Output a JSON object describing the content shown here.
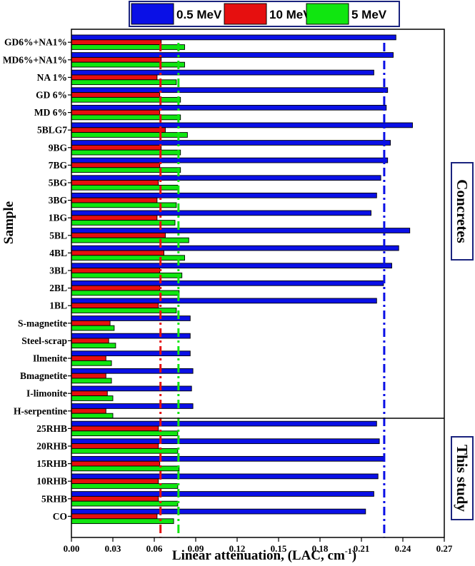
{
  "chart_data": {
    "type": "bar",
    "orientation": "horizontal",
    "title": "",
    "xlabel": "Linear attenuation, (LAC, cm",
    "xlabel_sup": "-1",
    "xlabel_end": ")",
    "ylabel": "Sample",
    "xlim": [
      0.0,
      0.27
    ],
    "xticks": [
      "0.00",
      "0.03",
      "0.06",
      "0.09",
      "0.12",
      "0.15",
      "0.18",
      "0.21",
      "0.24",
      "0.27"
    ],
    "categories": [
      "GD6%+NA1%",
      "MD6%+NA1%",
      "NA 1%",
      "GD 6%",
      "MD 6%",
      "5BLG7",
      "9BG",
      "7BG",
      "5BG",
      "3BG",
      "1BG",
      "5BL",
      "4BL",
      "3BL",
      "2BL",
      "1BL",
      "S-magnetite",
      "Steel-scrap",
      "Ilmenite",
      "Bmagnetite",
      "I-limonite",
      "H-serpentine",
      "25RHB",
      "20RHB",
      "15RHB",
      "10RHB",
      "5RHB",
      "CO"
    ],
    "series": [
      {
        "name": "0.5  MeV",
        "color": "#0a10e6",
        "values": [
          0.235,
          0.233,
          0.219,
          0.229,
          0.228,
          0.247,
          0.231,
          0.229,
          0.224,
          0.221,
          0.217,
          0.245,
          0.237,
          0.232,
          0.226,
          0.221,
          0.086,
          0.086,
          0.086,
          0.088,
          0.087,
          0.088,
          0.221,
          0.223,
          0.226,
          0.222,
          0.219,
          0.213
        ]
      },
      {
        "name": "10  MeV",
        "color": "#e60f0f",
        "values": [
          0.065,
          0.065,
          0.062,
          0.064,
          0.064,
          0.068,
          0.065,
          0.064,
          0.063,
          0.062,
          0.062,
          0.068,
          0.067,
          0.064,
          0.064,
          0.063,
          0.028,
          0.027,
          0.025,
          0.025,
          0.026,
          0.025,
          0.063,
          0.063,
          0.064,
          0.063,
          0.063,
          0.062
        ]
      },
      {
        "name": "5 MeV",
        "color": "#10e610",
        "values": [
          0.082,
          0.082,
          0.076,
          0.079,
          0.079,
          0.084,
          0.079,
          0.079,
          0.077,
          0.076,
          0.075,
          0.085,
          0.082,
          0.08,
          0.078,
          0.076,
          0.031,
          0.032,
          0.029,
          0.029,
          0.03,
          0.03,
          0.077,
          0.077,
          0.078,
          0.077,
          0.077,
          0.074
        ]
      }
    ],
    "reference_lines": [
      {
        "series": "0.5  MeV",
        "value": 0.2265,
        "color": "#0a10e6"
      },
      {
        "series": "10  MeV",
        "value": 0.0645,
        "color": "#e60f0f"
      },
      {
        "series": "5 MeV",
        "value": 0.0775,
        "color": "#10e610"
      }
    ],
    "groups": [
      {
        "label": "Concretes"
      },
      {
        "label": "This study"
      }
    ],
    "legend_position": "top"
  }
}
